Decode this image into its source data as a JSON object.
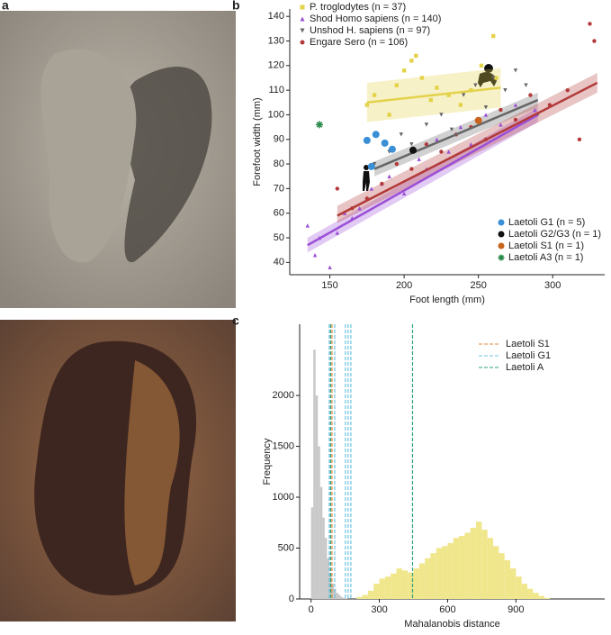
{
  "panel_labels": [
    "a",
    "b",
    "c"
  ],
  "chart_data": [
    {
      "type": "scatter",
      "xlabel": "Foot length (mm)",
      "ylabel": "Forefoot width (mm)",
      "xlim": [
        123,
        335
      ],
      "ylim": [
        35,
        143
      ],
      "xticks": [
        150,
        200,
        250,
        300
      ],
      "yticks": [
        40,
        50,
        60,
        70,
        80,
        90,
        100,
        110,
        120,
        130,
        140
      ],
      "legend": "upper left",
      "series": [
        {
          "name": "P. troglodytes (n = 37)",
          "color": "#e3d24a",
          "marker": "square",
          "x": [
            175,
            180,
            190,
            195,
            200,
            205,
            208,
            212,
            218,
            222,
            230,
            238,
            245,
            252,
            260,
            262
          ],
          "values": [
            104,
            108,
            100,
            112,
            118,
            122,
            124,
            115,
            106,
            111,
            108,
            104,
            110,
            120,
            132,
            115
          ],
          "fit": {
            "x": [
              175,
              265
            ],
            "y": [
              105,
              111
            ],
            "lower": [
              97,
              103
            ],
            "upper": [
              113,
              119
            ]
          }
        },
        {
          "name": "Shod Homo sapiens (n = 140)",
          "color": "#9b4fd6",
          "marker": "triangle",
          "x": [
            135,
            140,
            143,
            150,
            155,
            160,
            165,
            170,
            178,
            185,
            190,
            200,
            210,
            215,
            222,
            230,
            238,
            245,
            255,
            265,
            275,
            288
          ],
          "values": [
            55,
            43,
            50,
            38,
            52,
            60,
            58,
            62,
            70,
            72,
            75,
            68,
            82,
            78,
            90,
            85,
            95,
            88,
            100,
            96,
            104,
            102
          ],
          "fit": {
            "x": [
              135,
              290
            ],
            "y": [
              47,
              100
            ],
            "lower": [
              44,
              97
            ],
            "upper": [
              50,
              103
            ]
          }
        },
        {
          "name": "Unshod H. sapiens (n = 97)",
          "color": "#666666",
          "marker": "triangle-down",
          "x": [
            180,
            190,
            198,
            205,
            215,
            225,
            232,
            240,
            248,
            255,
            260,
            268,
            275,
            282,
            290
          ],
          "values": [
            80,
            85,
            92,
            88,
            96,
            100,
            94,
            108,
            112,
            103,
            115,
            110,
            118,
            112,
            100
          ],
          "fit": {
            "x": [
              180,
              290
            ],
            "y": [
              78,
              106
            ],
            "lower": [
              75,
              103
            ],
            "upper": [
              81,
              109
            ]
          }
        },
        {
          "name": "Engare Sero (n = 106)",
          "color": "#b33a3a",
          "marker": "circle",
          "x": [
            155,
            165,
            175,
            185,
            195,
            205,
            215,
            225,
            235,
            245,
            255,
            265,
            275,
            285,
            298,
            310,
            318,
            325,
            328
          ],
          "values": [
            70,
            62,
            66,
            72,
            80,
            78,
            88,
            85,
            92,
            95,
            90,
            102,
            98,
            108,
            104,
            110,
            90,
            137,
            130
          ],
          "fit": {
            "x": [
              155,
              330
            ],
            "y": [
              59,
              113
            ],
            "lower": [
              56,
              109
            ],
            "upper": [
              63,
              117
            ]
          }
        }
      ],
      "legend2": "lower right",
      "laetoli": [
        {
          "name": "Laetoli G1 (n = 5)",
          "color": "#3a8fd6",
          "marker": "circle",
          "x": [
            175,
            187,
            192,
            181,
            178
          ],
          "values": [
            89.6,
            88.5,
            86,
            92,
            79
          ]
        },
        {
          "name": "Laetoli G2/G3 (n = 1)",
          "color": "#111111",
          "marker": "circle",
          "x": [
            206
          ],
          "values": [
            85.6
          ]
        },
        {
          "name": "Laetoli S1 (n = 1)",
          "color": "#c8641e",
          "marker": "circle",
          "x": [
            250
          ],
          "values": [
            97.7
          ]
        },
        {
          "name": "Laetoli A3 (n = 1)",
          "color": "#2a8a4a",
          "marker": "asterisk",
          "x": [
            143
          ],
          "values": [
            96
          ]
        }
      ]
    },
    {
      "type": "histogram",
      "xlabel": "Mahalanobis distance",
      "ylabel": "Frequency",
      "xlim": [
        -50,
        1290
      ],
      "ylim": [
        0,
        2700
      ],
      "xticks": [
        0,
        300,
        600,
        900
      ],
      "yticks": [
        0,
        500,
        1000,
        1500,
        2000
      ],
      "legend": "upper right",
      "hists": [
        {
          "color": "#c8c8c8",
          "bins": [
            0,
            10,
            20,
            30,
            40,
            50,
            60,
            70,
            80,
            90,
            100,
            110,
            120,
            130,
            140,
            150,
            160
          ],
          "counts": [
            900,
            2450,
            2000,
            1500,
            1100,
            800,
            600,
            400,
            250,
            150,
            100,
            60,
            40,
            20,
            10,
            5
          ]
        },
        {
          "color": "#f0e68c",
          "bins": [
            200,
            225,
            250,
            275,
            300,
            325,
            350,
            375,
            400,
            425,
            450,
            475,
            500,
            525,
            550,
            575,
            600,
            625,
            650,
            675,
            700,
            725,
            750,
            775,
            800,
            825,
            850,
            875,
            900,
            925,
            950,
            975,
            1000,
            1025,
            1050
          ],
          "counts": [
            20,
            40,
            80,
            150,
            200,
            220,
            250,
            300,
            280,
            260,
            300,
            350,
            400,
            450,
            500,
            520,
            550,
            600,
            620,
            650,
            700,
            760,
            680,
            600,
            520,
            450,
            380,
            300,
            220,
            150,
            100,
            60,
            30,
            10
          ]
        }
      ],
      "series": [
        {
          "name": "Laetoli S1",
          "color": "#e08a3a",
          "values": [
            92
          ]
        },
        {
          "name": "Laetoli G1",
          "color": "#6cc3e0",
          "values": [
            80,
            104,
            151,
            163,
            175
          ]
        },
        {
          "name": "Laetoli A",
          "color": "#2aa07a",
          "values": [
            446,
            86
          ]
        }
      ]
    }
  ]
}
